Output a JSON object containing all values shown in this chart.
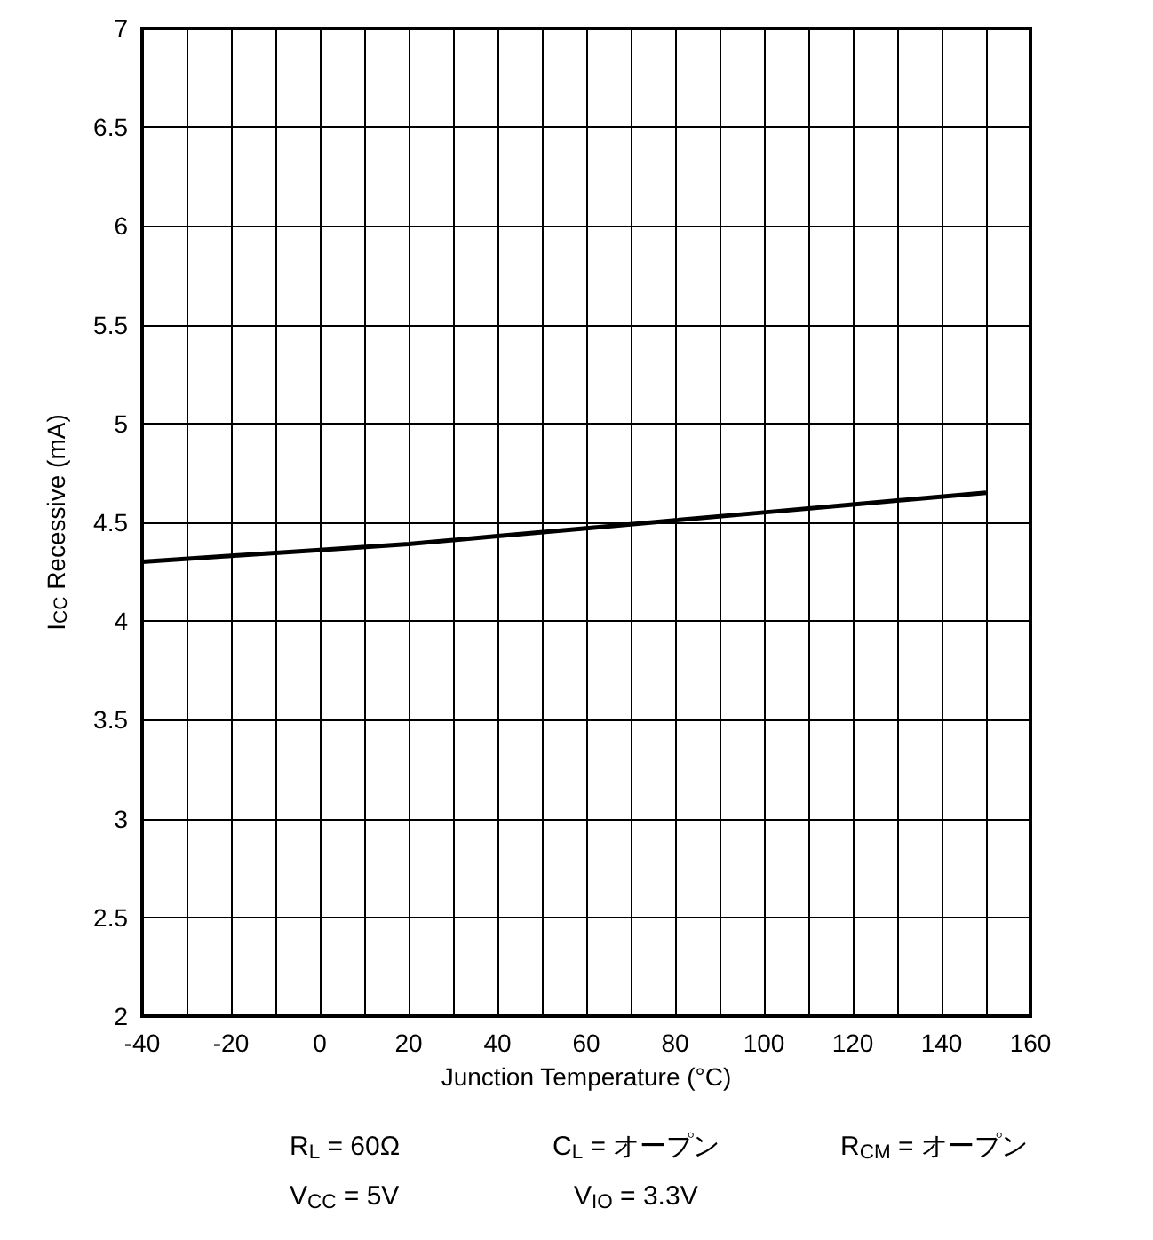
{
  "chart_data": {
    "type": "line",
    "xlabel": "Junction Temperature (°C)",
    "ylabel": "I$_{CC}$ Recessive (mA)",
    "x": [
      -40,
      -20,
      0,
      20,
      25,
      40,
      60,
      75,
      80,
      100,
      120,
      150
    ],
    "series": [
      {
        "color": "#000000",
        "values": [
          4.3,
          4.33,
          4.36,
          4.39,
          4.4,
          4.43,
          4.47,
          4.5,
          4.51,
          4.55,
          4.59,
          4.65
        ]
      }
    ],
    "xlim": [
      -40,
      160
    ],
    "xticks": [
      -40,
      {
        "value": -30,
        "label": null
      },
      -20,
      {
        "value": -10,
        "label": null
      },
      0,
      {
        "value": 10,
        "label": null
      },
      20,
      {
        "value": 30,
        "label": null
      },
      40,
      {
        "value": 50,
        "label": null
      },
      60,
      {
        "value": 70,
        "label": null
      },
      80,
      {
        "value": 90,
        "label": null
      },
      100,
      {
        "value": 110,
        "label": null
      },
      120,
      {
        "value": 130,
        "label": null
      },
      140,
      {
        "value": 150,
        "label": null
      },
      160
    ],
    "ylim": [
      2,
      7
    ],
    "yticks": [
      2,
      2.5,
      3,
      3.5,
      4,
      4.5,
      5,
      5.5,
      6,
      6.5,
      7
    ],
    "grid": true,
    "marker": "none",
    "line_style": "solid",
    "annotations": [
      "R$_{L}$ = 60Ω",
      "C$_{L}$ = オープン",
      "R$_{CM}$ = オープン",
      "V$_{CC}$ = 5V",
      "V$_{IO}$ = 3.3V"
    ]
  }
}
